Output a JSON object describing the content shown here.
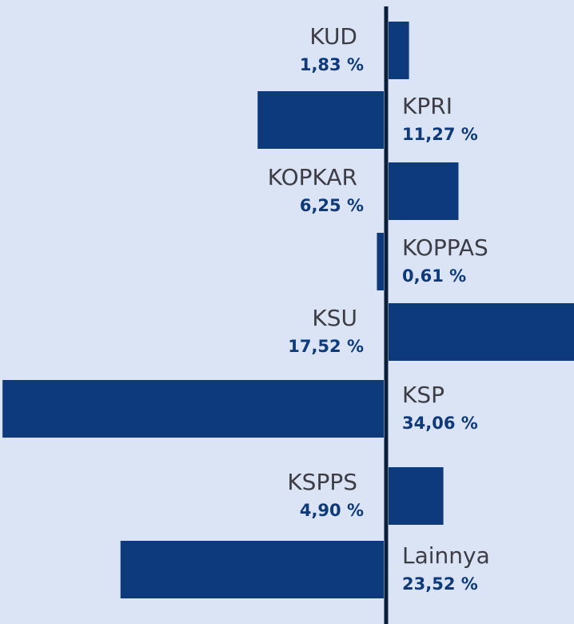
{
  "chart_data": {
    "type": "bar",
    "categories": [
      "KUD",
      "KPRI",
      "KOPKAR",
      "KOPPAS",
      "KSU",
      "KSP",
      "KSPPS",
      "Lainnya"
    ],
    "values": [
      1.83,
      11.27,
      6.25,
      0.61,
      17.52,
      34.06,
      4.9,
      23.52
    ],
    "value_labels": [
      "1,83 %",
      "11,27 %",
      "6,25 %",
      "0,61 %",
      "17,52 %",
      "34,06 %",
      "4,90 %",
      "23,52 %"
    ],
    "color": "#0d3a7d"
  }
}
